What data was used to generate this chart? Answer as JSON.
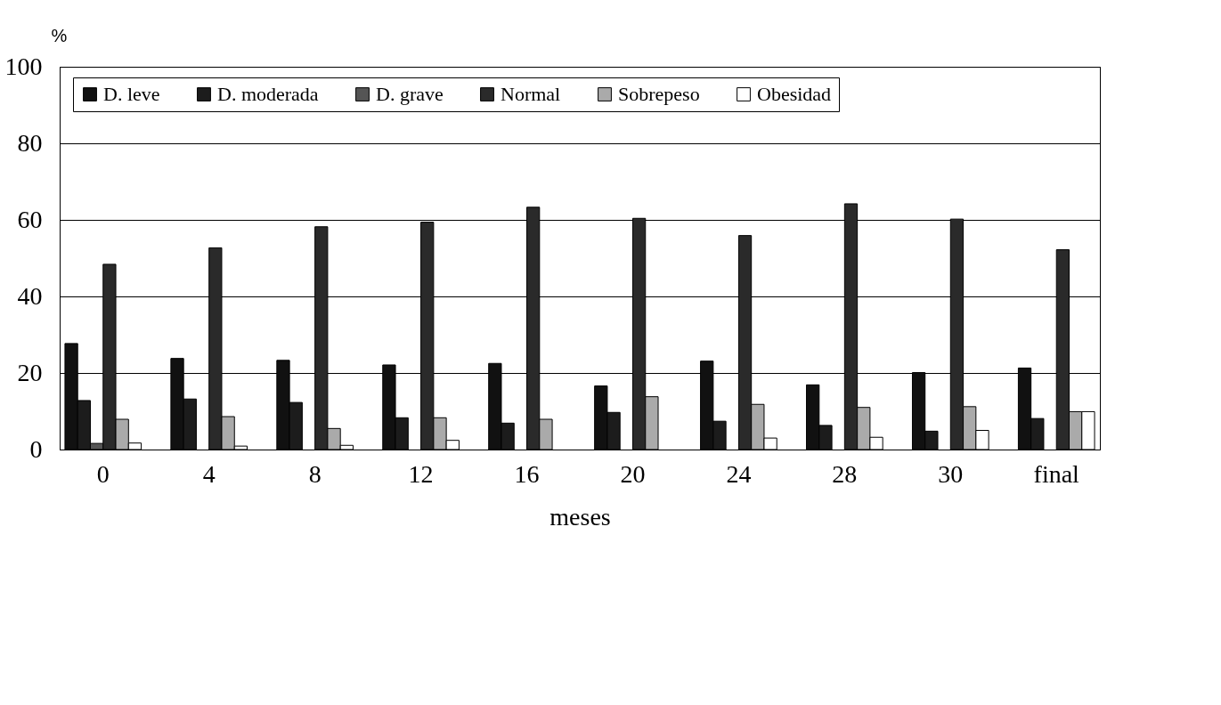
{
  "chart_data": {
    "type": "bar",
    "ylabel": "%",
    "xlabel": "meses",
    "categories": [
      "0",
      "4",
      "8",
      "12",
      "16",
      "20",
      "24",
      "28",
      "30",
      "final"
    ],
    "series": [
      {
        "name": "D. leve",
        "color": "#111111",
        "values": [
          27.7,
          23.8,
          23.3,
          22.1,
          22.5,
          16.6,
          23.1,
          16.9,
          20.1,
          21.3
        ]
      },
      {
        "name": "D. moderada",
        "color": "#1c1c1c",
        "values": [
          12.8,
          13.2,
          12.3,
          8.3,
          6.9,
          9.7,
          7.4,
          6.3,
          4.8,
          8.1
        ]
      },
      {
        "name": "D. grave",
        "color": "#555555",
        "values": [
          1.6,
          null,
          null,
          null,
          null,
          null,
          null,
          null,
          null,
          null
        ]
      },
      {
        "name": "Normal",
        "color": "#2a2a2a",
        "values": [
          48.4,
          52.7,
          58.2,
          59.4,
          63.3,
          60.4,
          55.9,
          64.2,
          60.2,
          52.2
        ]
      },
      {
        "name": "Sobrepeso",
        "color": "#aaaaaa",
        "values": [
          7.9,
          8.6,
          5.5,
          8.3,
          7.9,
          13.8,
          11.8,
          11.0,
          11.2,
          9.9
        ]
      },
      {
        "name": "Obesidad",
        "color": "#ffffff",
        "values": [
          1.7,
          0.9,
          1.1,
          2.4,
          null,
          null,
          3.0,
          3.2,
          5.0,
          9.9
        ]
      }
    ],
    "ylim": [
      0,
      100
    ],
    "yticks": [
      0,
      20,
      40,
      60,
      80,
      100
    ],
    "grid": "y",
    "legend": "top"
  }
}
